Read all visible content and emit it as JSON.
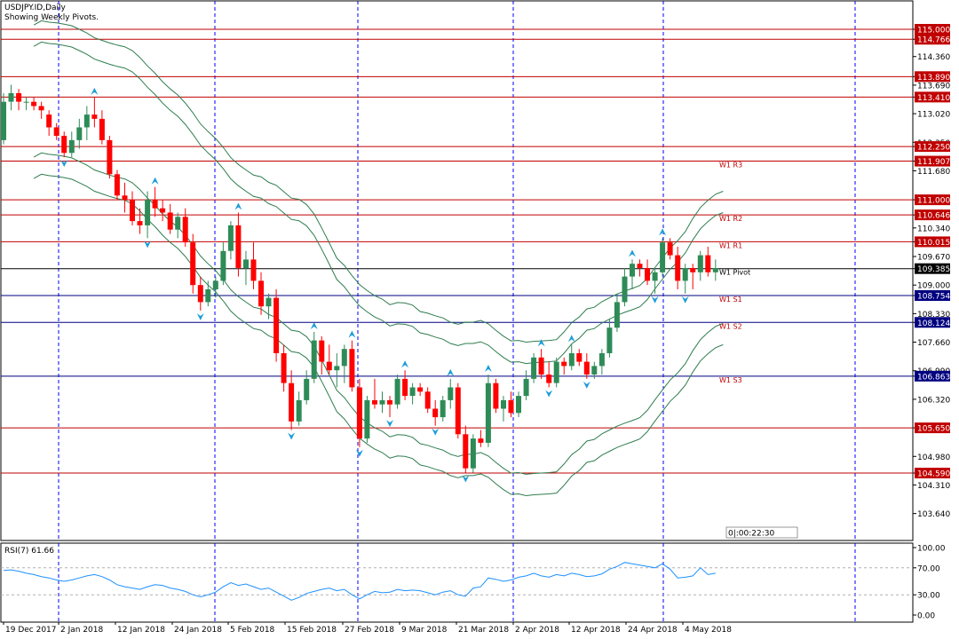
{
  "header": {
    "symbol_line": "USDJPY.ID,Daily",
    "subtitle_line": "Showing Weekly Pivots."
  },
  "rsi": {
    "label": "RSI(7) 61.66",
    "axis_ticks": [
      "100.00",
      "70.00",
      "30.00",
      "0.00"
    ],
    "levels": [
      70,
      30
    ]
  },
  "countdown": {
    "text": "0|:00:22:30"
  },
  "colors": {
    "bull": "#2e8b57",
    "bear": "#ff0000",
    "band": "#2f7d4f",
    "pivot_line_red": "#c00000",
    "pivot_line_blue": "#000080",
    "grid": "#0000ff",
    "rsi_line": "#1e90ff",
    "arrow": "#1e9cd7"
  },
  "chart_data": {
    "type": "candlestick",
    "symbol": "USDJPY.ID",
    "timeframe": "Daily",
    "ylim": [
      103.3,
      115.4
    ],
    "price_ticks": [
      "115.000",
      "114.766",
      "114.360",
      "113.890",
      "113.690",
      "113.410",
      "113.020",
      "112.350",
      "112.250",
      "111.907",
      "111.680",
      "111.000",
      "110.646",
      "110.340",
      "110.015",
      "109.670",
      "109.385",
      "109.000",
      "108.754",
      "108.330",
      "108.124",
      "107.660",
      "106.990",
      "106.863",
      "106.320",
      "105.650",
      "104.980",
      "104.590",
      "104.310",
      "103.640"
    ],
    "highlighted_ticks": [
      "115.000",
      "114.766",
      "113.890",
      "113.410",
      "112.250",
      "111.907",
      "111.000",
      "110.646",
      "110.015",
      "108.754",
      "108.124",
      "106.863",
      "105.650",
      "104.590"
    ],
    "current_price": "109.385",
    "date_labels": [
      "19 Dec 2017",
      "2 Jan 2018",
      "12 Jan 2018",
      "24 Jan 2018",
      "5 Feb 2018",
      "15 Feb 2018",
      "27 Feb 2018",
      "9 Mar 2018",
      "21 Mar 2018",
      "2 Apr 2018",
      "12 Apr 2018",
      "24 Apr 2018",
      "4 May 2018"
    ],
    "horizontal_levels": [
      {
        "price": 115.0,
        "color": "red"
      },
      {
        "price": 114.766,
        "color": "red"
      },
      {
        "price": 113.89,
        "color": "red"
      },
      {
        "price": 113.41,
        "color": "red"
      },
      {
        "price": 112.25,
        "color": "red"
      },
      {
        "price": 111.907,
        "color": "red"
      },
      {
        "price": 111.0,
        "color": "red"
      },
      {
        "price": 110.646,
        "color": "red"
      },
      {
        "price": 110.015,
        "color": "red"
      },
      {
        "price": 109.385,
        "color": "black"
      },
      {
        "price": 108.754,
        "color": "blue"
      },
      {
        "price": 108.124,
        "color": "blue"
      },
      {
        "price": 106.863,
        "color": "blue"
      },
      {
        "price": 105.65,
        "color": "red"
      },
      {
        "price": 104.59,
        "color": "red"
      }
    ],
    "pivot_labels": [
      {
        "name": "W1 R3",
        "price": 111.907
      },
      {
        "name": "W1 R2",
        "price": 110.646
      },
      {
        "name": "W1 R1",
        "price": 110.015
      },
      {
        "name": "W1 Pivot",
        "price": 109.385
      },
      {
        "name": "W1 S1",
        "price": 108.754
      },
      {
        "name": "W1 S2",
        "price": 108.124
      },
      {
        "name": "W1 S3",
        "price": 106.863
      }
    ],
    "candles": [
      [
        112.4,
        113.5,
        112.3,
        113.3
      ],
      [
        113.3,
        113.7,
        113.1,
        113.5
      ],
      [
        113.5,
        113.6,
        113.1,
        113.3
      ],
      [
        113.3,
        113.4,
        113.1,
        113.3
      ],
      [
        113.3,
        113.4,
        113.1,
        113.2
      ],
      [
        113.2,
        113.3,
        112.9,
        113.1
      ],
      [
        113.0,
        113.1,
        112.5,
        112.7
      ],
      [
        112.7,
        112.8,
        112.4,
        112.5
      ],
      [
        112.5,
        112.6,
        112.0,
        112.1
      ],
      [
        112.1,
        112.6,
        112.0,
        112.4
      ],
      [
        112.4,
        112.9,
        112.2,
        112.7
      ],
      [
        112.7,
        113.2,
        112.4,
        113.0
      ],
      [
        113.0,
        113.4,
        112.7,
        112.9
      ],
      [
        112.9,
        113.1,
        112.3,
        112.4
      ],
      [
        112.4,
        112.5,
        111.5,
        111.6
      ],
      [
        111.6,
        111.7,
        111.0,
        111.1
      ],
      [
        111.1,
        111.4,
        110.7,
        111.0
      ],
      [
        111.0,
        111.2,
        110.4,
        110.5
      ],
      [
        110.5,
        110.8,
        110.2,
        110.4
      ],
      [
        110.4,
        111.2,
        110.1,
        111.0
      ],
      [
        111.0,
        111.3,
        110.6,
        110.8
      ],
      [
        110.8,
        111.0,
        110.5,
        110.7
      ],
      [
        110.7,
        110.9,
        110.2,
        110.3
      ],
      [
        110.3,
        110.7,
        110.1,
        110.6
      ],
      [
        110.6,
        110.8,
        109.9,
        110.0
      ],
      [
        110.0,
        110.2,
        108.8,
        109.0
      ],
      [
        109.0,
        109.2,
        108.4,
        108.6
      ],
      [
        108.6,
        109.1,
        108.5,
        108.9
      ],
      [
        108.9,
        109.2,
        108.7,
        109.1
      ],
      [
        109.1,
        110.0,
        109.0,
        109.8
      ],
      [
        109.8,
        110.5,
        109.6,
        110.4
      ],
      [
        110.4,
        110.7,
        109.2,
        109.4
      ],
      [
        109.4,
        109.8,
        109.0,
        109.6
      ],
      [
        109.6,
        110.0,
        108.9,
        109.1
      ],
      [
        109.1,
        109.3,
        108.3,
        108.5
      ],
      [
        108.5,
        108.8,
        108.2,
        108.7
      ],
      [
        108.7,
        108.9,
        107.2,
        107.4
      ],
      [
        107.4,
        107.6,
        106.5,
        106.7
      ],
      [
        106.7,
        107.0,
        105.6,
        105.8
      ],
      [
        105.8,
        106.5,
        105.7,
        106.3
      ],
      [
        106.3,
        107.0,
        106.2,
        106.8
      ],
      [
        106.8,
        107.9,
        106.7,
        107.7
      ],
      [
        107.7,
        107.8,
        106.9,
        107.2
      ],
      [
        107.2,
        107.6,
        106.9,
        107.0
      ],
      [
        107.0,
        107.4,
        106.6,
        107.1
      ],
      [
        107.1,
        107.6,
        106.7,
        107.5
      ],
      [
        107.5,
        107.7,
        106.5,
        106.6
      ],
      [
        106.6,
        106.8,
        105.2,
        105.4
      ],
      [
        105.4,
        106.4,
        105.3,
        106.3
      ],
      [
        106.3,
        106.8,
        106.1,
        106.2
      ],
      [
        106.2,
        106.5,
        106.0,
        106.3
      ],
      [
        106.3,
        106.4,
        105.9,
        106.2
      ],
      [
        106.2,
        106.9,
        106.1,
        106.8
      ],
      [
        106.8,
        107.0,
        106.3,
        106.4
      ],
      [
        106.4,
        106.7,
        106.2,
        106.6
      ],
      [
        106.6,
        106.7,
        106.4,
        106.5
      ],
      [
        106.5,
        106.6,
        106.0,
        106.1
      ],
      [
        106.1,
        106.3,
        105.7,
        105.9
      ],
      [
        105.9,
        106.4,
        105.8,
        106.3
      ],
      [
        106.3,
        106.8,
        106.1,
        106.6
      ],
      [
        106.6,
        106.7,
        105.4,
        105.5
      ],
      [
        105.5,
        105.7,
        104.6,
        104.7
      ],
      [
        104.7,
        105.5,
        104.6,
        105.4
      ],
      [
        105.4,
        105.6,
        105.2,
        105.3
      ],
      [
        105.3,
        106.9,
        105.2,
        106.7
      ],
      [
        106.7,
        106.8,
        106.0,
        106.1
      ],
      [
        106.1,
        106.4,
        105.8,
        106.3
      ],
      [
        106.3,
        106.5,
        105.9,
        106.0
      ],
      [
        106.0,
        106.5,
        105.9,
        106.4
      ],
      [
        106.4,
        107.0,
        106.3,
        106.8
      ],
      [
        106.8,
        107.4,
        106.7,
        107.3
      ],
      [
        107.3,
        107.5,
        106.8,
        106.9
      ],
      [
        106.9,
        107.2,
        106.6,
        106.7
      ],
      [
        106.7,
        107.3,
        106.6,
        107.2
      ],
      [
        107.2,
        107.3,
        106.9,
        107.1
      ],
      [
        107.1,
        107.6,
        107.0,
        107.4
      ],
      [
        107.4,
        107.5,
        107.1,
        107.2
      ],
      [
        107.2,
        107.4,
        106.8,
        106.9
      ],
      [
        106.9,
        107.2,
        106.8,
        107.1
      ],
      [
        107.1,
        107.5,
        106.9,
        107.4
      ],
      [
        107.4,
        108.2,
        107.3,
        108.0
      ],
      [
        108.0,
        108.8,
        107.9,
        108.6
      ],
      [
        108.6,
        109.4,
        108.5,
        109.2
      ],
      [
        109.2,
        109.6,
        108.9,
        109.5
      ],
      [
        109.5,
        109.6,
        109.2,
        109.4
      ],
      [
        109.4,
        109.6,
        109.0,
        109.1
      ],
      [
        109.1,
        109.4,
        108.8,
        109.3
      ],
      [
        109.3,
        110.1,
        109.2,
        110.0
      ],
      [
        110.0,
        110.1,
        109.6,
        109.7
      ],
      [
        109.7,
        109.9,
        108.9,
        109.1
      ],
      [
        109.1,
        109.5,
        108.8,
        109.4
      ],
      [
        109.4,
        109.5,
        108.9,
        109.3
      ],
      [
        109.3,
        109.8,
        109.1,
        109.7
      ],
      [
        109.7,
        109.9,
        109.2,
        109.3
      ],
      [
        109.3,
        109.6,
        109.1,
        109.4
      ]
    ],
    "rsi_values": [
      66,
      67,
      65,
      62,
      60,
      57,
      55,
      52,
      50,
      52,
      55,
      58,
      60,
      57,
      52,
      45,
      42,
      40,
      38,
      42,
      45,
      44,
      40,
      38,
      35,
      30,
      27,
      30,
      34,
      42,
      48,
      44,
      46,
      42,
      38,
      40,
      34,
      28,
      22,
      26,
      32,
      35,
      38,
      40,
      36,
      38,
      30,
      24,
      30,
      35,
      33,
      34,
      38,
      36,
      37,
      36,
      33,
      30,
      34,
      36,
      30,
      28,
      40,
      42,
      55,
      53,
      50,
      52,
      56,
      58,
      62,
      58,
      56,
      60,
      58,
      62,
      60,
      57,
      58,
      61,
      68,
      72,
      78,
      76,
      74,
      72,
      70,
      76,
      68,
      55,
      56,
      58,
      70,
      60,
      62
    ]
  }
}
